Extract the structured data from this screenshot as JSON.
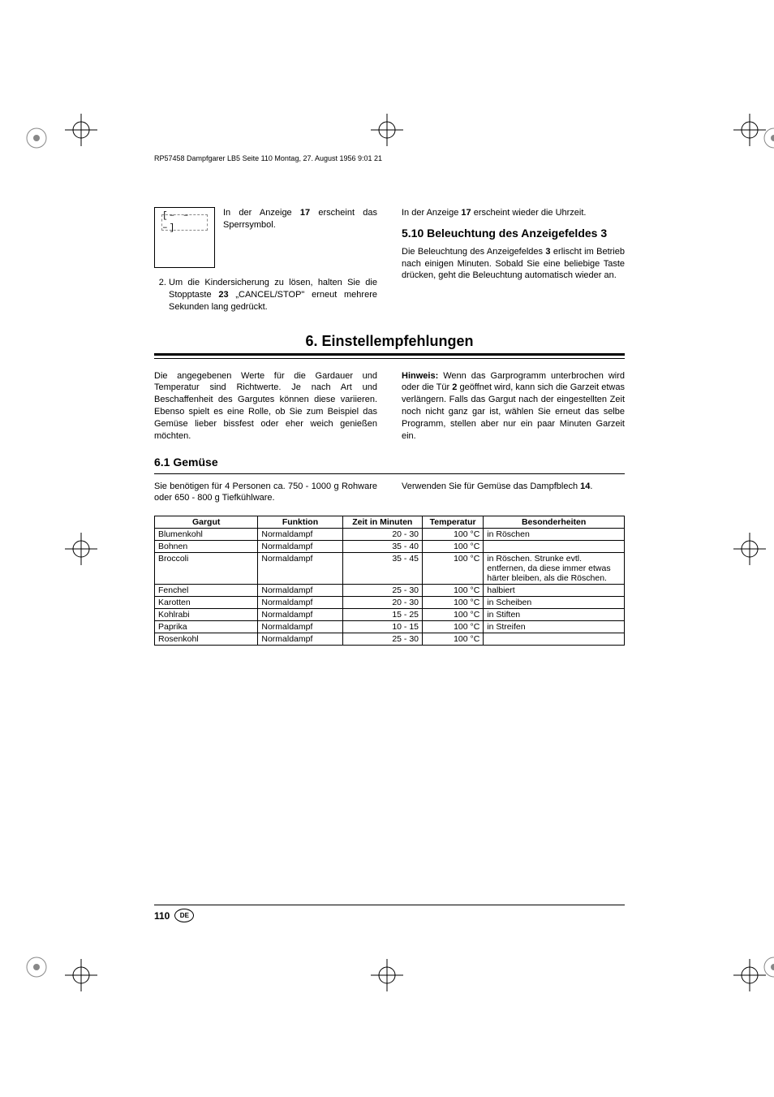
{
  "header_text": "RP57458 Dampfgarer LB5  Seite 110  Montag, 27. August 1956  9:01 21",
  "display_symbol": "[‒ ‒ ‒]",
  "left_col": {
    "intro": "In der Anzeige ",
    "intro_ref": "17",
    "intro2": " erscheint das Sperrsymbol.",
    "list_item_pre": "Um die Kindersicherung zu lösen, halten Sie die Stopptaste ",
    "list_item_ref": "23",
    "list_item_post": " „CANCEL/STOP\" erneut mehrere Sekunden lang gedrückt."
  },
  "right_col": {
    "p1_pre": "In der Anzeige ",
    "p1_ref": "17",
    "p1_post": " erscheint wieder die Uhrzeit.",
    "heading_5_10": "5.10 Beleuchtung des Anzeigefeldes 3",
    "p2_pre": "Die Beleuchtung des Anzeigefeldes ",
    "p2_ref": "3",
    "p2_post": " erlischt im Betrieb nach einigen Minuten. Sobald Sie eine beliebige Taste drücken, geht die Beleuchtung automatisch wieder an."
  },
  "heading_6": "6. Einstellempfehlungen",
  "sec6_left": "Die angegebenen Werte für die Gardauer und Temperatur sind Richtwerte. Je nach Art und Beschaffenheit des Gargutes können diese variieren. Ebenso spielt es eine Rolle, ob Sie zum Beispiel das Gemüse lieber bissfest oder eher weich genießen möchten.",
  "sec6_right_label": "Hinweis:",
  "sec6_right_pre": " Wenn das Garprogramm unterbrochen wird oder die Tür ",
  "sec6_right_ref": "2",
  "sec6_right_post": " geöffnet wird, kann sich die Garzeit etwas verlängern. Falls das Gargut nach der eingestellten Zeit noch nicht ganz gar ist, wählen Sie erneut das selbe Programm, stellen aber nur ein paar Minuten Garzeit ein.",
  "heading_6_1": "6.1  Gemüse",
  "sec61_left": "Sie benötigen für 4 Personen ca. 750 - 1000 g Rohware oder 650 - 800 g Tiefkühlware.",
  "sec61_right_pre": "Verwenden Sie für Gemüse das Dampfblech ",
  "sec61_right_ref": "14",
  "sec61_right_post": ".",
  "table": {
    "headers": [
      "Gargut",
      "Funktion",
      "Zeit in Minuten",
      "Temperatur",
      "Besonderheiten"
    ],
    "col_widths": [
      "22%",
      "18%",
      "17%",
      "13%",
      "30%"
    ],
    "rows": [
      [
        "Blumenkohl",
        "Normaldampf",
        "20 - 30",
        "100 °C",
        "in Röschen"
      ],
      [
        "Bohnen",
        "Normaldampf",
        "35 - 40",
        "100 °C",
        ""
      ],
      [
        "Broccoli",
        "Normaldampf",
        "35 - 45",
        "100 °C",
        "in Röschen. Strunke evtl. entfernen, da diese immer etwas härter bleiben, als die Röschen."
      ],
      [
        "Fenchel",
        "Normaldampf",
        "25 - 30",
        "100 °C",
        "halbiert"
      ],
      [
        "Karotten",
        "Normaldampf",
        "20 - 30",
        "100 °C",
        "in Scheiben"
      ],
      [
        "Kohlrabi",
        "Normaldampf",
        "15 - 25",
        "100 °C",
        "in Stiften"
      ],
      [
        "Paprika",
        "Normaldampf",
        "10 - 15",
        "100 °C",
        "in Streifen"
      ],
      [
        "Rosenkohl",
        "Normaldampf",
        "25 - 30",
        "100 °C",
        ""
      ]
    ]
  },
  "page_number": "110",
  "lang_badge": "DE",
  "colors": {
    "text": "#000000",
    "background": "#ffffff",
    "border": "#000000"
  }
}
